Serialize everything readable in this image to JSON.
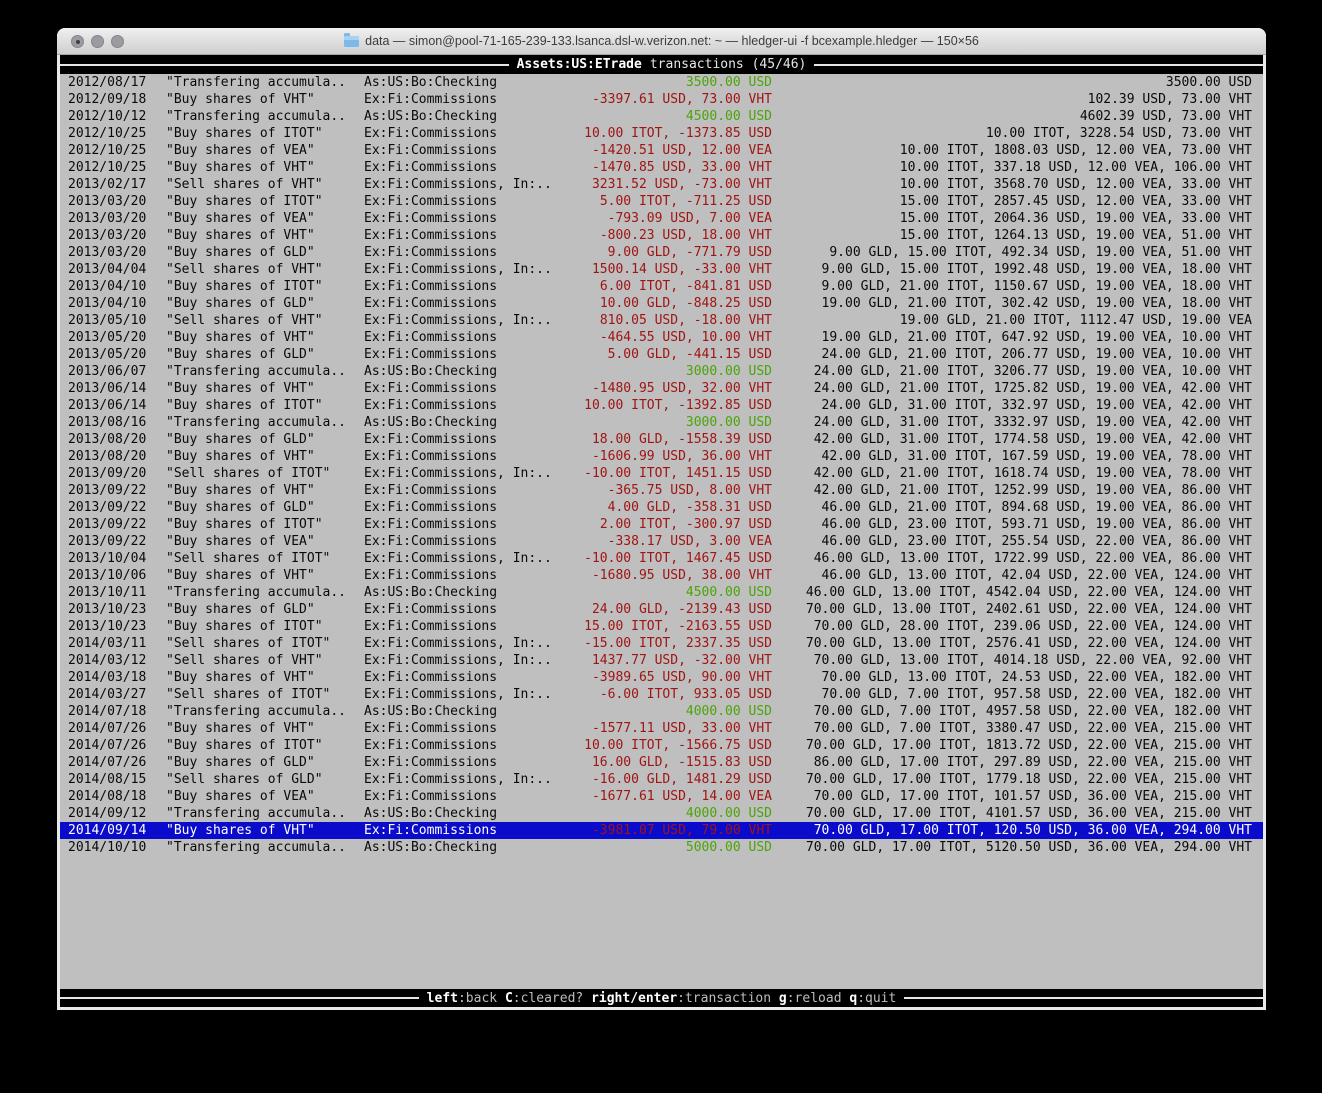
{
  "colors": {
    "credit": "#4CA408",
    "debit": "#A01414",
    "selection": "#0B0BCB"
  },
  "window": {
    "titlebar": {
      "title": "data — simon@pool-71-165-239-133.lsanca.dsl-w.verizon.net: ~ — hledger-ui -f bcexample.hledger — 150×56"
    },
    "header": {
      "account": "Assets:US:ETrade",
      "suffix": "transactions (45/46)"
    },
    "footer": {
      "hints": [
        {
          "key": "left",
          "action": ":back"
        },
        {
          "key": "C",
          "action": ":cleared?"
        },
        {
          "key": "right/enter",
          "action": ":transaction"
        },
        {
          "key": "g",
          "action": ":reload"
        },
        {
          "key": "q",
          "action": ":quit"
        }
      ]
    }
  },
  "transactions": [
    {
      "date": "2012/08/17",
      "description": "\"Transfering accumula..",
      "account": "As:US:Bo:Checking",
      "change": "3500.00 USD",
      "change_type": "credit",
      "balance": "3500.00 USD",
      "selected": false
    },
    {
      "date": "2012/09/18",
      "description": "\"Buy shares of VHT\"",
      "account": "Ex:Fi:Commissions",
      "change": "-3397.61 USD, 73.00 VHT",
      "change_type": "debit",
      "balance": "102.39 USD, 73.00 VHT",
      "selected": false
    },
    {
      "date": "2012/10/12",
      "description": "\"Transfering accumula..",
      "account": "As:US:Bo:Checking",
      "change": "4500.00 USD",
      "change_type": "credit",
      "balance": "4602.39 USD, 73.00 VHT",
      "selected": false
    },
    {
      "date": "2012/10/25",
      "description": "\"Buy shares of ITOT\"",
      "account": "Ex:Fi:Commissions",
      "change": "10.00 ITOT, -1373.85 USD",
      "change_type": "debit",
      "balance": "10.00 ITOT, 3228.54 USD, 73.00 VHT",
      "selected": false
    },
    {
      "date": "2012/10/25",
      "description": "\"Buy shares of VEA\"",
      "account": "Ex:Fi:Commissions",
      "change": "-1420.51 USD, 12.00 VEA",
      "change_type": "debit",
      "balance": "10.00 ITOT, 1808.03 USD, 12.00 VEA, 73.00 VHT",
      "selected": false
    },
    {
      "date": "2012/10/25",
      "description": "\"Buy shares of VHT\"",
      "account": "Ex:Fi:Commissions",
      "change": "-1470.85 USD, 33.00 VHT",
      "change_type": "debit",
      "balance": "10.00 ITOT, 337.18 USD, 12.00 VEA, 106.00 VHT",
      "selected": false
    },
    {
      "date": "2013/02/17",
      "description": "\"Sell shares of VHT\"",
      "account": "Ex:Fi:Commissions, In:..",
      "change": "3231.52 USD, -73.00 VHT",
      "change_type": "debit",
      "balance": "10.00 ITOT, 3568.70 USD, 12.00 VEA, 33.00 VHT",
      "selected": false
    },
    {
      "date": "2013/03/20",
      "description": "\"Buy shares of ITOT\"",
      "account": "Ex:Fi:Commissions",
      "change": "5.00 ITOT, -711.25 USD",
      "change_type": "debit",
      "balance": "15.00 ITOT, 2857.45 USD, 12.00 VEA, 33.00 VHT",
      "selected": false
    },
    {
      "date": "2013/03/20",
      "description": "\"Buy shares of VEA\"",
      "account": "Ex:Fi:Commissions",
      "change": "-793.09 USD, 7.00 VEA",
      "change_type": "debit",
      "balance": "15.00 ITOT, 2064.36 USD, 19.00 VEA, 33.00 VHT",
      "selected": false
    },
    {
      "date": "2013/03/20",
      "description": "\"Buy shares of VHT\"",
      "account": "Ex:Fi:Commissions",
      "change": "-800.23 USD, 18.00 VHT",
      "change_type": "debit",
      "balance": "15.00 ITOT, 1264.13 USD, 19.00 VEA, 51.00 VHT",
      "selected": false
    },
    {
      "date": "2013/03/20",
      "description": "\"Buy shares of GLD\"",
      "account": "Ex:Fi:Commissions",
      "change": "9.00 GLD, -771.79 USD",
      "change_type": "debit",
      "balance": "9.00 GLD, 15.00 ITOT, 492.34 USD, 19.00 VEA, 51.00 VHT",
      "selected": false
    },
    {
      "date": "2013/04/04",
      "description": "\"Sell shares of VHT\"",
      "account": "Ex:Fi:Commissions, In:..",
      "change": "1500.14 USD, -33.00 VHT",
      "change_type": "debit",
      "balance": "9.00 GLD, 15.00 ITOT, 1992.48 USD, 19.00 VEA, 18.00 VHT",
      "selected": false
    },
    {
      "date": "2013/04/10",
      "description": "\"Buy shares of ITOT\"",
      "account": "Ex:Fi:Commissions",
      "change": "6.00 ITOT, -841.81 USD",
      "change_type": "debit",
      "balance": "9.00 GLD, 21.00 ITOT, 1150.67 USD, 19.00 VEA, 18.00 VHT",
      "selected": false
    },
    {
      "date": "2013/04/10",
      "description": "\"Buy shares of GLD\"",
      "account": "Ex:Fi:Commissions",
      "change": "10.00 GLD, -848.25 USD",
      "change_type": "debit",
      "balance": "19.00 GLD, 21.00 ITOT, 302.42 USD, 19.00 VEA, 18.00 VHT",
      "selected": false
    },
    {
      "date": "2013/05/10",
      "description": "\"Sell shares of VHT\"",
      "account": "Ex:Fi:Commissions, In:..",
      "change": "810.05 USD, -18.00 VHT",
      "change_type": "debit",
      "balance": "19.00 GLD, 21.00 ITOT, 1112.47 USD, 19.00 VEA",
      "selected": false
    },
    {
      "date": "2013/05/20",
      "description": "\"Buy shares of VHT\"",
      "account": "Ex:Fi:Commissions",
      "change": "-464.55 USD, 10.00 VHT",
      "change_type": "debit",
      "balance": "19.00 GLD, 21.00 ITOT, 647.92 USD, 19.00 VEA, 10.00 VHT",
      "selected": false
    },
    {
      "date": "2013/05/20",
      "description": "\"Buy shares of GLD\"",
      "account": "Ex:Fi:Commissions",
      "change": "5.00 GLD, -441.15 USD",
      "change_type": "debit",
      "balance": "24.00 GLD, 21.00 ITOT, 206.77 USD, 19.00 VEA, 10.00 VHT",
      "selected": false
    },
    {
      "date": "2013/06/07",
      "description": "\"Transfering accumula..",
      "account": "As:US:Bo:Checking",
      "change": "3000.00 USD",
      "change_type": "credit",
      "balance": "24.00 GLD, 21.00 ITOT, 3206.77 USD, 19.00 VEA, 10.00 VHT",
      "selected": false
    },
    {
      "date": "2013/06/14",
      "description": "\"Buy shares of VHT\"",
      "account": "Ex:Fi:Commissions",
      "change": "-1480.95 USD, 32.00 VHT",
      "change_type": "debit",
      "balance": "24.00 GLD, 21.00 ITOT, 1725.82 USD, 19.00 VEA, 42.00 VHT",
      "selected": false
    },
    {
      "date": "2013/06/14",
      "description": "\"Buy shares of ITOT\"",
      "account": "Ex:Fi:Commissions",
      "change": "10.00 ITOT, -1392.85 USD",
      "change_type": "debit",
      "balance": "24.00 GLD, 31.00 ITOT, 332.97 USD, 19.00 VEA, 42.00 VHT",
      "selected": false
    },
    {
      "date": "2013/08/16",
      "description": "\"Transfering accumula..",
      "account": "As:US:Bo:Checking",
      "change": "3000.00 USD",
      "change_type": "credit",
      "balance": "24.00 GLD, 31.00 ITOT, 3332.97 USD, 19.00 VEA, 42.00 VHT",
      "selected": false
    },
    {
      "date": "2013/08/20",
      "description": "\"Buy shares of GLD\"",
      "account": "Ex:Fi:Commissions",
      "change": "18.00 GLD, -1558.39 USD",
      "change_type": "debit",
      "balance": "42.00 GLD, 31.00 ITOT, 1774.58 USD, 19.00 VEA, 42.00 VHT",
      "selected": false
    },
    {
      "date": "2013/08/20",
      "description": "\"Buy shares of VHT\"",
      "account": "Ex:Fi:Commissions",
      "change": "-1606.99 USD, 36.00 VHT",
      "change_type": "debit",
      "balance": "42.00 GLD, 31.00 ITOT, 167.59 USD, 19.00 VEA, 78.00 VHT",
      "selected": false
    },
    {
      "date": "2013/09/20",
      "description": "\"Sell shares of ITOT\"",
      "account": "Ex:Fi:Commissions, In:..",
      "change": "-10.00 ITOT, 1451.15 USD",
      "change_type": "debit",
      "balance": "42.00 GLD, 21.00 ITOT, 1618.74 USD, 19.00 VEA, 78.00 VHT",
      "selected": false
    },
    {
      "date": "2013/09/22",
      "description": "\"Buy shares of VHT\"",
      "account": "Ex:Fi:Commissions",
      "change": "-365.75 USD, 8.00 VHT",
      "change_type": "debit",
      "balance": "42.00 GLD, 21.00 ITOT, 1252.99 USD, 19.00 VEA, 86.00 VHT",
      "selected": false
    },
    {
      "date": "2013/09/22",
      "description": "\"Buy shares of GLD\"",
      "account": "Ex:Fi:Commissions",
      "change": "4.00 GLD, -358.31 USD",
      "change_type": "debit",
      "balance": "46.00 GLD, 21.00 ITOT, 894.68 USD, 19.00 VEA, 86.00 VHT",
      "selected": false
    },
    {
      "date": "2013/09/22",
      "description": "\"Buy shares of ITOT\"",
      "account": "Ex:Fi:Commissions",
      "change": "2.00 ITOT, -300.97 USD",
      "change_type": "debit",
      "balance": "46.00 GLD, 23.00 ITOT, 593.71 USD, 19.00 VEA, 86.00 VHT",
      "selected": false
    },
    {
      "date": "2013/09/22",
      "description": "\"Buy shares of VEA\"",
      "account": "Ex:Fi:Commissions",
      "change": "-338.17 USD, 3.00 VEA",
      "change_type": "debit",
      "balance": "46.00 GLD, 23.00 ITOT, 255.54 USD, 22.00 VEA, 86.00 VHT",
      "selected": false
    },
    {
      "date": "2013/10/04",
      "description": "\"Sell shares of ITOT\"",
      "account": "Ex:Fi:Commissions, In:..",
      "change": "-10.00 ITOT, 1467.45 USD",
      "change_type": "debit",
      "balance": "46.00 GLD, 13.00 ITOT, 1722.99 USD, 22.00 VEA, 86.00 VHT",
      "selected": false
    },
    {
      "date": "2013/10/06",
      "description": "\"Buy shares of VHT\"",
      "account": "Ex:Fi:Commissions",
      "change": "-1680.95 USD, 38.00 VHT",
      "change_type": "debit",
      "balance": "46.00 GLD, 13.00 ITOT, 42.04 USD, 22.00 VEA, 124.00 VHT",
      "selected": false
    },
    {
      "date": "2013/10/11",
      "description": "\"Transfering accumula..",
      "account": "As:US:Bo:Checking",
      "change": "4500.00 USD",
      "change_type": "credit",
      "balance": "46.00 GLD, 13.00 ITOT, 4542.04 USD, 22.00 VEA, 124.00 VHT",
      "selected": false
    },
    {
      "date": "2013/10/23",
      "description": "\"Buy shares of GLD\"",
      "account": "Ex:Fi:Commissions",
      "change": "24.00 GLD, -2139.43 USD",
      "change_type": "debit",
      "balance": "70.00 GLD, 13.00 ITOT, 2402.61 USD, 22.00 VEA, 124.00 VHT",
      "selected": false
    },
    {
      "date": "2013/10/23",
      "description": "\"Buy shares of ITOT\"",
      "account": "Ex:Fi:Commissions",
      "change": "15.00 ITOT, -2163.55 USD",
      "change_type": "debit",
      "balance": "70.00 GLD, 28.00 ITOT, 239.06 USD, 22.00 VEA, 124.00 VHT",
      "selected": false
    },
    {
      "date": "2014/03/11",
      "description": "\"Sell shares of ITOT\"",
      "account": "Ex:Fi:Commissions, In:..",
      "change": "-15.00 ITOT, 2337.35 USD",
      "change_type": "debit",
      "balance": "70.00 GLD, 13.00 ITOT, 2576.41 USD, 22.00 VEA, 124.00 VHT",
      "selected": false
    },
    {
      "date": "2014/03/12",
      "description": "\"Sell shares of VHT\"",
      "account": "Ex:Fi:Commissions, In:..",
      "change": "1437.77 USD, -32.00 VHT",
      "change_type": "debit",
      "balance": "70.00 GLD, 13.00 ITOT, 4014.18 USD, 22.00 VEA, 92.00 VHT",
      "selected": false
    },
    {
      "date": "2014/03/18",
      "description": "\"Buy shares of VHT\"",
      "account": "Ex:Fi:Commissions",
      "change": "-3989.65 USD, 90.00 VHT",
      "change_type": "debit",
      "balance": "70.00 GLD, 13.00 ITOT, 24.53 USD, 22.00 VEA, 182.00 VHT",
      "selected": false
    },
    {
      "date": "2014/03/27",
      "description": "\"Sell shares of ITOT\"",
      "account": "Ex:Fi:Commissions, In:..",
      "change": "-6.00 ITOT, 933.05 USD",
      "change_type": "debit",
      "balance": "70.00 GLD, 7.00 ITOT, 957.58 USD, 22.00 VEA, 182.00 VHT",
      "selected": false
    },
    {
      "date": "2014/07/18",
      "description": "\"Transfering accumula..",
      "account": "As:US:Bo:Checking",
      "change": "4000.00 USD",
      "change_type": "credit",
      "balance": "70.00 GLD, 7.00 ITOT, 4957.58 USD, 22.00 VEA, 182.00 VHT",
      "selected": false
    },
    {
      "date": "2014/07/26",
      "description": "\"Buy shares of VHT\"",
      "account": "Ex:Fi:Commissions",
      "change": "-1577.11 USD, 33.00 VHT",
      "change_type": "debit",
      "balance": "70.00 GLD, 7.00 ITOT, 3380.47 USD, 22.00 VEA, 215.00 VHT",
      "selected": false
    },
    {
      "date": "2014/07/26",
      "description": "\"Buy shares of ITOT\"",
      "account": "Ex:Fi:Commissions",
      "change": "10.00 ITOT, -1566.75 USD",
      "change_type": "debit",
      "balance": "70.00 GLD, 17.00 ITOT, 1813.72 USD, 22.00 VEA, 215.00 VHT",
      "selected": false
    },
    {
      "date": "2014/07/26",
      "description": "\"Buy shares of GLD\"",
      "account": "Ex:Fi:Commissions",
      "change": "16.00 GLD, -1515.83 USD",
      "change_type": "debit",
      "balance": "86.00 GLD, 17.00 ITOT, 297.89 USD, 22.00 VEA, 215.00 VHT",
      "selected": false
    },
    {
      "date": "2014/08/15",
      "description": "\"Sell shares of GLD\"",
      "account": "Ex:Fi:Commissions, In:..",
      "change": "-16.00 GLD, 1481.29 USD",
      "change_type": "debit",
      "balance": "70.00 GLD, 17.00 ITOT, 1779.18 USD, 22.00 VEA, 215.00 VHT",
      "selected": false
    },
    {
      "date": "2014/08/18",
      "description": "\"Buy shares of VEA\"",
      "account": "Ex:Fi:Commissions",
      "change": "-1677.61 USD, 14.00 VEA",
      "change_type": "debit",
      "balance": "70.00 GLD, 17.00 ITOT, 101.57 USD, 36.00 VEA, 215.00 VHT",
      "selected": false
    },
    {
      "date": "2014/09/12",
      "description": "\"Transfering accumula..",
      "account": "As:US:Bo:Checking",
      "change": "4000.00 USD",
      "change_type": "credit",
      "balance": "70.00 GLD, 17.00 ITOT, 4101.57 USD, 36.00 VEA, 215.00 VHT",
      "selected": false
    },
    {
      "date": "2014/09/14",
      "description": "\"Buy shares of VHT\"",
      "account": "Ex:Fi:Commissions",
      "change": "-3981.07 USD, 79.00 VHT",
      "change_type": "debit",
      "balance": "70.00 GLD, 17.00 ITOT, 120.50 USD, 36.00 VEA, 294.00 VHT",
      "selected": true
    },
    {
      "date": "2014/10/10",
      "description": "\"Transfering accumula..",
      "account": "As:US:Bo:Checking",
      "change": "5000.00 USD",
      "change_type": "credit",
      "balance": "70.00 GLD, 17.00 ITOT, 5120.50 USD, 36.00 VEA, 294.00 VHT",
      "selected": false
    }
  ]
}
